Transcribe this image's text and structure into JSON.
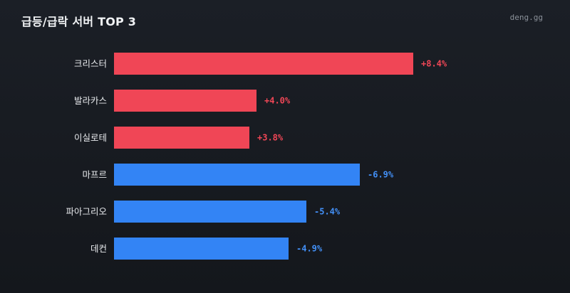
{
  "header": {
    "title": "급등/급락 서버 TOP 3",
    "watermark": "deng.gg"
  },
  "colors": {
    "positive": "#f04656",
    "negative": "#3384f5",
    "positive_text": "#f04656",
    "negative_text": "#4390f7"
  },
  "chart_data": {
    "type": "bar",
    "orientation": "horizontal",
    "title": "급등/급락 서버 TOP 3",
    "categories": [
      "크리스터",
      "발라카스",
      "이실로테",
      "마프르",
      "파아그리오",
      "데컨"
    ],
    "values": [
      8.4,
      4.0,
      3.8,
      -6.9,
      -5.4,
      -4.9
    ],
    "value_labels": [
      "+8.4%",
      "+4.0%",
      "+3.8%",
      "-6.9%",
      "-5.4%",
      "-4.9%"
    ],
    "grid": false,
    "legend": "none"
  }
}
